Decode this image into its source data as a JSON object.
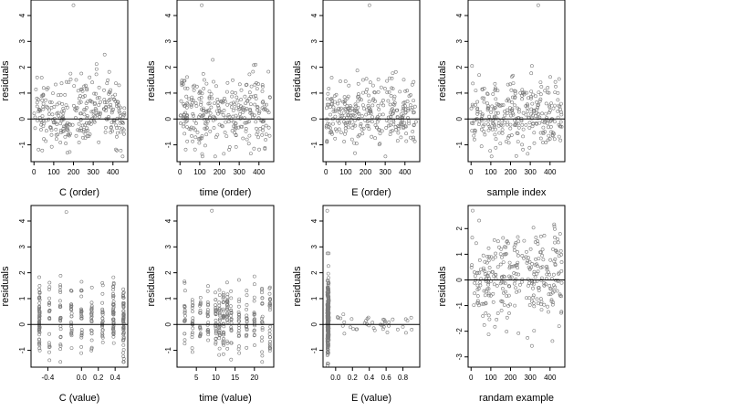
{
  "chart_data": [
    {
      "type": "scatter",
      "xlabel": "C (order)",
      "ylabel": "residuals",
      "xlim": [
        -15,
        475
      ],
      "ylim": [
        -1.65,
        4.6
      ],
      "xticks": [
        0,
        100,
        200,
        300,
        400
      ],
      "xtick_labels": [
        "0",
        "100",
        "200",
        "300",
        "400"
      ],
      "yticks": [
        -1,
        0,
        1,
        2,
        3,
        4
      ],
      "ytick_labels": [
        "-1",
        "0",
        "1",
        "2",
        "3",
        "4"
      ],
      "hline": 0,
      "pattern": "index",
      "n_points": 300,
      "seed": 11,
      "outliers": [
        {
          "x": 200,
          "y": 4.4
        }
      ]
    },
    {
      "type": "scatter",
      "xlabel": "time (order)",
      "ylabel": "residuals",
      "xlim": [
        -15,
        475
      ],
      "ylim": [
        -1.65,
        4.6
      ],
      "xticks": [
        0,
        100,
        200,
        300,
        400
      ],
      "xtick_labels": [
        "0",
        "100",
        "200",
        "300",
        "400"
      ],
      "yticks": [
        -1,
        0,
        1,
        2,
        3,
        4
      ],
      "ytick_labels": [
        "-1",
        "0",
        "1",
        "2",
        "3",
        "4"
      ],
      "hline": 0,
      "pattern": "index",
      "n_points": 300,
      "seed": 23,
      "outliers": [
        {
          "x": 110,
          "y": 4.4
        }
      ]
    },
    {
      "type": "scatter",
      "xlabel": "E (order)",
      "ylabel": "residuals",
      "xlim": [
        -15,
        475
      ],
      "ylim": [
        -1.65,
        4.6
      ],
      "xticks": [
        0,
        100,
        200,
        300,
        400
      ],
      "xtick_labels": [
        "0",
        "100",
        "200",
        "300",
        "400"
      ],
      "yticks": [
        -1,
        0,
        1,
        2,
        3,
        4
      ],
      "ytick_labels": [
        "-1",
        "0",
        "1",
        "2",
        "3",
        "4"
      ],
      "hline": 0,
      "pattern": "index",
      "n_points": 300,
      "seed": 37,
      "outliers": [
        {
          "x": 220,
          "y": 4.4
        }
      ]
    },
    {
      "type": "scatter",
      "xlabel": "sample index",
      "ylabel": "residuals",
      "xlim": [
        -15,
        475
      ],
      "ylim": [
        -1.65,
        4.6
      ],
      "xticks": [
        0,
        100,
        200,
        300,
        400
      ],
      "xtick_labels": [
        "0",
        "100",
        "200",
        "300",
        "400"
      ],
      "yticks": [
        -1,
        0,
        1,
        2,
        3,
        4
      ],
      "ytick_labels": [
        "-1",
        "0",
        "1",
        "2",
        "3",
        "4"
      ],
      "hline": 0,
      "pattern": "index",
      "n_points": 300,
      "seed": 51,
      "outliers": [
        {
          "x": 340,
          "y": 4.4
        }
      ]
    },
    {
      "type": "scatter",
      "xlabel": "C (value)",
      "ylabel": "residuals",
      "xlim": [
        -0.6,
        0.55
      ],
      "ylim": [
        -1.65,
        4.6
      ],
      "xticks": [
        -0.4,
        0.0,
        0.2,
        0.4
      ],
      "xtick_labels": [
        "-0.4",
        "0.0",
        "0.2",
        "0.4"
      ],
      "yticks": [
        -1,
        0,
        1,
        2,
        3,
        4
      ],
      "ytick_labels": [
        "-1",
        "0",
        "1",
        "2",
        "3",
        "4"
      ],
      "hline": 0,
      "pattern": "columns",
      "columns": [
        -0.5,
        -0.38,
        -0.25,
        -0.12,
        0.0,
        0.12,
        0.25,
        0.38,
        0.5
      ],
      "column_counts": [
        60,
        20,
        25,
        25,
        25,
        25,
        25,
        45,
        60
      ],
      "n_points": 310,
      "seed": 63,
      "outliers": [
        {
          "x": -0.18,
          "y": 4.35
        }
      ]
    },
    {
      "type": "scatter",
      "xlabel": "time (value)",
      "ylabel": "residuals",
      "xlim": [
        0,
        25
      ],
      "ylim": [
        -1.65,
        4.6
      ],
      "xticks": [
        5,
        10,
        15,
        20
      ],
      "xtick_labels": [
        "5",
        "10",
        "15",
        "20"
      ],
      "yticks": [
        -1,
        0,
        1,
        2,
        3,
        4
      ],
      "ytick_labels": [
        "-1",
        "0",
        "1",
        "2",
        "3",
        "4"
      ],
      "hline": 0,
      "pattern": "columns",
      "columns": [
        2,
        4,
        6,
        8,
        10,
        11,
        12,
        13,
        14,
        16,
        18,
        20,
        22,
        24
      ],
      "column_counts": [
        20,
        20,
        20,
        20,
        25,
        25,
        30,
        25,
        20,
        20,
        20,
        20,
        20,
        25
      ],
      "n_points": 310,
      "seed": 71,
      "outliers": [
        {
          "x": 9,
          "y": 4.4
        }
      ]
    },
    {
      "type": "scatter",
      "xlabel": "E (value)",
      "ylabel": "residuals",
      "xlim": [
        -0.15,
        1.0
      ],
      "ylim": [
        -1.65,
        4.6
      ],
      "xticks": [
        0.0,
        0.2,
        0.4,
        0.6,
        0.8
      ],
      "xtick_labels": [
        "0.0",
        "0.2",
        "0.4",
        "0.6",
        "0.8"
      ],
      "yticks": [
        -1,
        0,
        1,
        2,
        3,
        4
      ],
      "ytick_labels": [
        "-1",
        "0",
        "1",
        "2",
        "3",
        "4"
      ],
      "hline": 0,
      "pattern": "clustered",
      "cluster_x": -0.09,
      "n_points": 310,
      "seed": 83,
      "outliers": [
        {
          "x": -0.1,
          "y": 4.4
        }
      ]
    },
    {
      "type": "scatter",
      "xlabel": "randam example",
      "ylabel": "residuals",
      "xlim": [
        -15,
        475
      ],
      "ylim": [
        -3.4,
        2.9
      ],
      "xticks": [
        0,
        100,
        200,
        300,
        400
      ],
      "xtick_labels": [
        "0",
        "100",
        "200",
        "300",
        "400"
      ],
      "yticks": [
        -3,
        -2,
        -1,
        0,
        1,
        2
      ],
      "ytick_labels": [
        "-3",
        "-2",
        "-1",
        "0",
        "1",
        "2"
      ],
      "hline": 0,
      "pattern": "normal",
      "n_points": 300,
      "seed": 97,
      "outliers": []
    }
  ]
}
